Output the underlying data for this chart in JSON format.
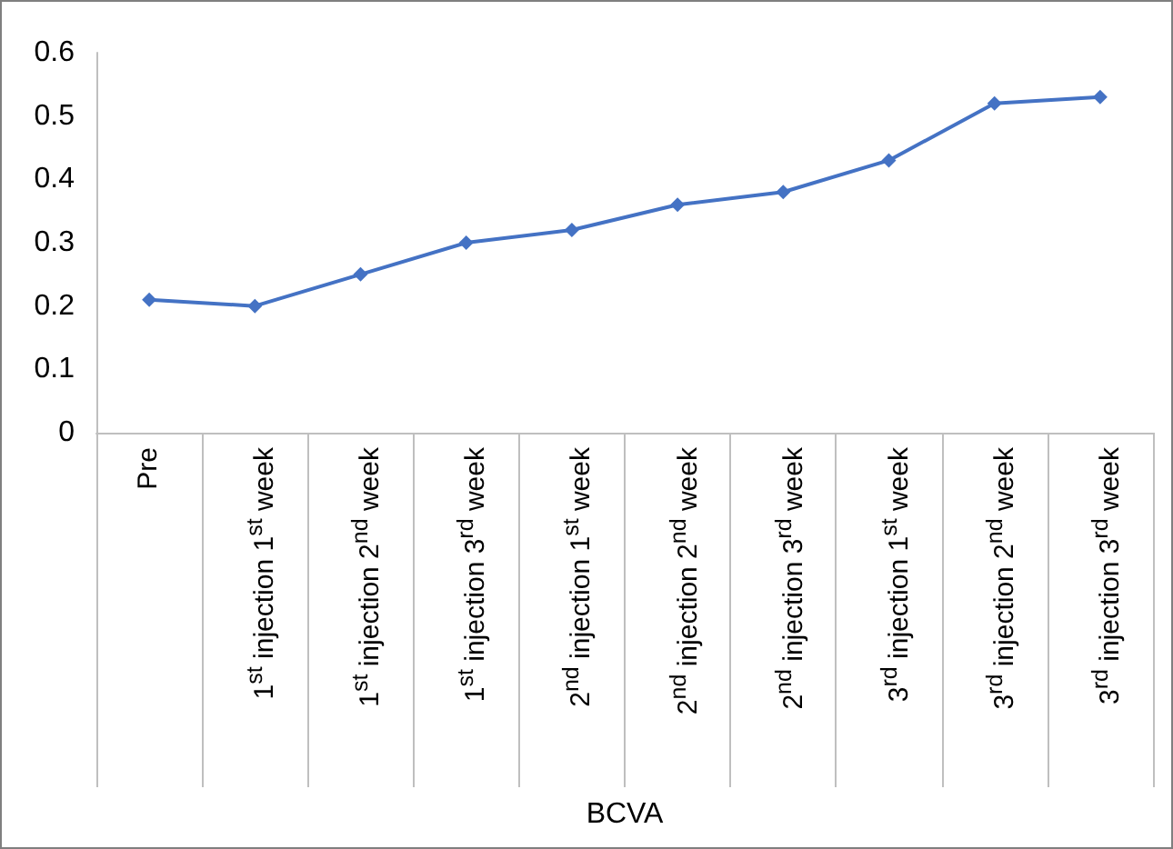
{
  "chart_data": {
    "type": "line",
    "xlabel": "BCVA",
    "categories": [
      "Pre",
      "1$^{st}$ injection 1$^{st}$ week",
      "1$^{st}$ injection 2$^{nd}$ week",
      "1$^{st}$ injection 3$^{rd}$ week",
      "2$^{nd}$ injection 1$^{st}$ week",
      "2$^{nd}$ injection 2$^{nd}$ week",
      "2$^{nd}$ injection 3$^{rd}$ week",
      "3$^{rd}$ injection 1$^{st}$ week",
      "3$^{rd}$ injection 2$^{nd}$ week",
      "3$^{rd}$ injection 3$^{rd}$ week"
    ],
    "series": [
      {
        "color": "#4472c4",
        "values": [
          0.21,
          0.2,
          0.25,
          0.3,
          0.32,
          0.36,
          0.38,
          0.43,
          0.52,
          0.53
        ]
      }
    ],
    "ylim": [
      0,
      0.6
    ],
    "yticks": [
      0,
      0.1,
      0.2,
      0.3,
      0.4,
      0.5,
      0.6
    ],
    "grid": false,
    "marker": "diamond",
    "line_style": "solid"
  }
}
